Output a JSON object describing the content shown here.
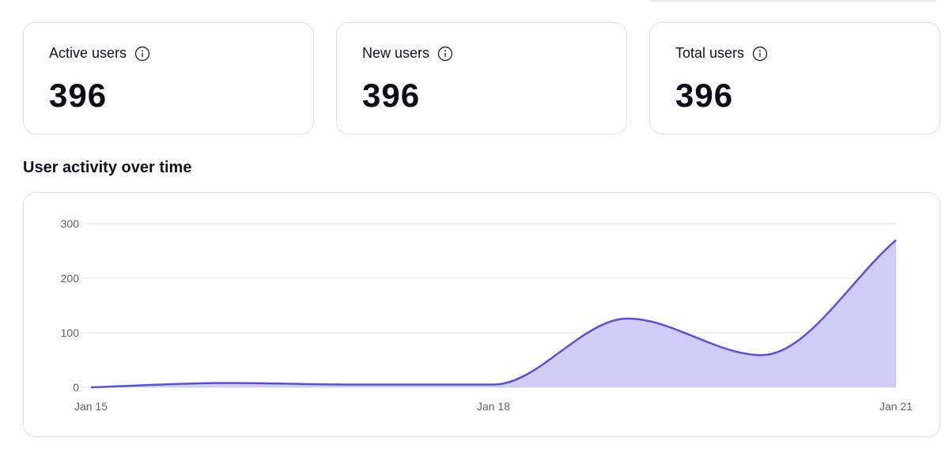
{
  "stats": [
    {
      "label": "Active users",
      "value": "396"
    },
    {
      "label": "New users",
      "value": "396"
    },
    {
      "label": "Total users",
      "value": "396"
    }
  ],
  "section_title": "User activity over time",
  "colors": {
    "line": "#5a50d8",
    "fill": "#cfcdf8",
    "grid": "#e3e4ea",
    "axis_text": "#5b5f79"
  },
  "chart_data": {
    "type": "area",
    "x": [
      "Jan 15",
      "Jan 16",
      "Jan 17",
      "Jan 18",
      "Jan 19",
      "Jan 20",
      "Jan 21"
    ],
    "values": [
      0,
      8,
      5,
      5,
      126,
      59,
      270
    ],
    "x_tick_labels": [
      "Jan 15",
      "Jan 18",
      "Jan 21"
    ],
    "y_ticks": [
      0,
      100,
      200,
      300
    ],
    "ylim": [
      0,
      300
    ],
    "grid": true,
    "title": "",
    "xlabel": "",
    "ylabel": ""
  }
}
